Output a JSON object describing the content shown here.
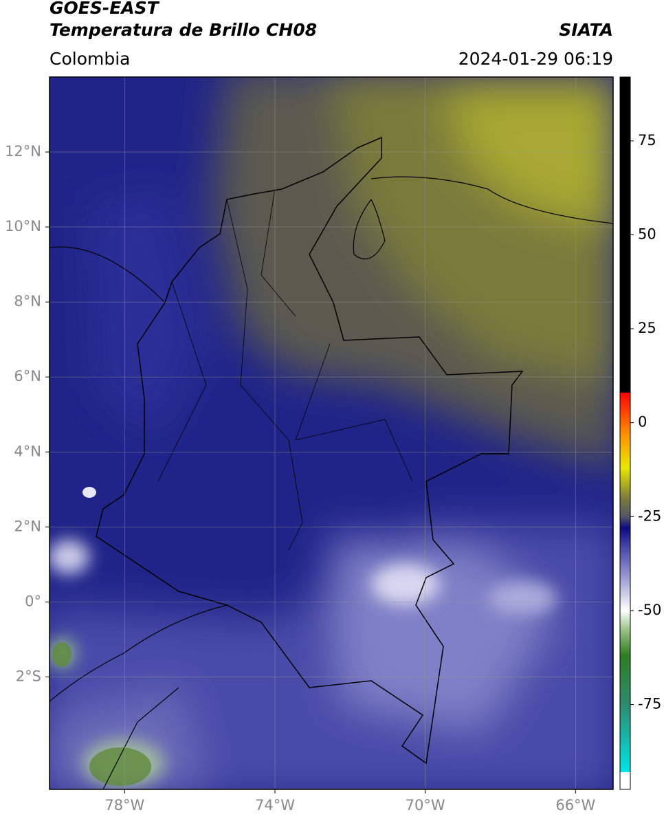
{
  "header": {
    "title": "GOES-EAST",
    "subtitle": "Temperatura de Brillo CH08",
    "source": "SIATA",
    "region": "Colombia",
    "timestamp": "2024-01-29 06:19"
  },
  "map": {
    "lon_range": [
      -80,
      -65
    ],
    "lat_range": [
      -5,
      14
    ],
    "lon_ticks": [
      {
        "value": -78,
        "label": "78°W"
      },
      {
        "value": -74,
        "label": "74°W"
      },
      {
        "value": -70,
        "label": "70°W"
      },
      {
        "value": -66,
        "label": "66°W"
      }
    ],
    "lat_ticks": [
      {
        "value": 12,
        "label": "12°N"
      },
      {
        "value": 10,
        "label": "10°N"
      },
      {
        "value": 8,
        "label": "8°N"
      },
      {
        "value": 6,
        "label": "6°N"
      },
      {
        "value": 4,
        "label": "4°N"
      },
      {
        "value": 2,
        "label": "2°N"
      },
      {
        "value": 0,
        "label": "0°"
      },
      {
        "value": -2,
        "label": "2°S"
      }
    ]
  },
  "colorbar": {
    "range": [
      -97.6,
      92
    ],
    "ticks": [
      75,
      50,
      25,
      0,
      -25,
      -50,
      -75
    ],
    "stops": [
      {
        "value": -97.6,
        "color": "#ffffff"
      },
      {
        "value": -93,
        "color": "#ffffff"
      },
      {
        "value": -93,
        "color": "#00e5e5"
      },
      {
        "value": -75,
        "color": "#2e8b6e"
      },
      {
        "value": -62,
        "color": "#2e7d22"
      },
      {
        "value": -55,
        "color": "#9bc48a"
      },
      {
        "value": -50,
        "color": "#ffffff"
      },
      {
        "value": -42,
        "color": "#a4a4d8"
      },
      {
        "value": -32,
        "color": "#3a3aa0"
      },
      {
        "value": -28,
        "color": "#0a0a80"
      },
      {
        "value": -25,
        "color": "#555566"
      },
      {
        "value": -20,
        "color": "#7d7d3a"
      },
      {
        "value": -12,
        "color": "#e8e800"
      },
      {
        "value": -3,
        "color": "#ff9000"
      },
      {
        "value": 8,
        "color": "#ff0000"
      },
      {
        "value": 8,
        "color": "#000000"
      },
      {
        "value": 92,
        "color": "#000000"
      }
    ]
  }
}
